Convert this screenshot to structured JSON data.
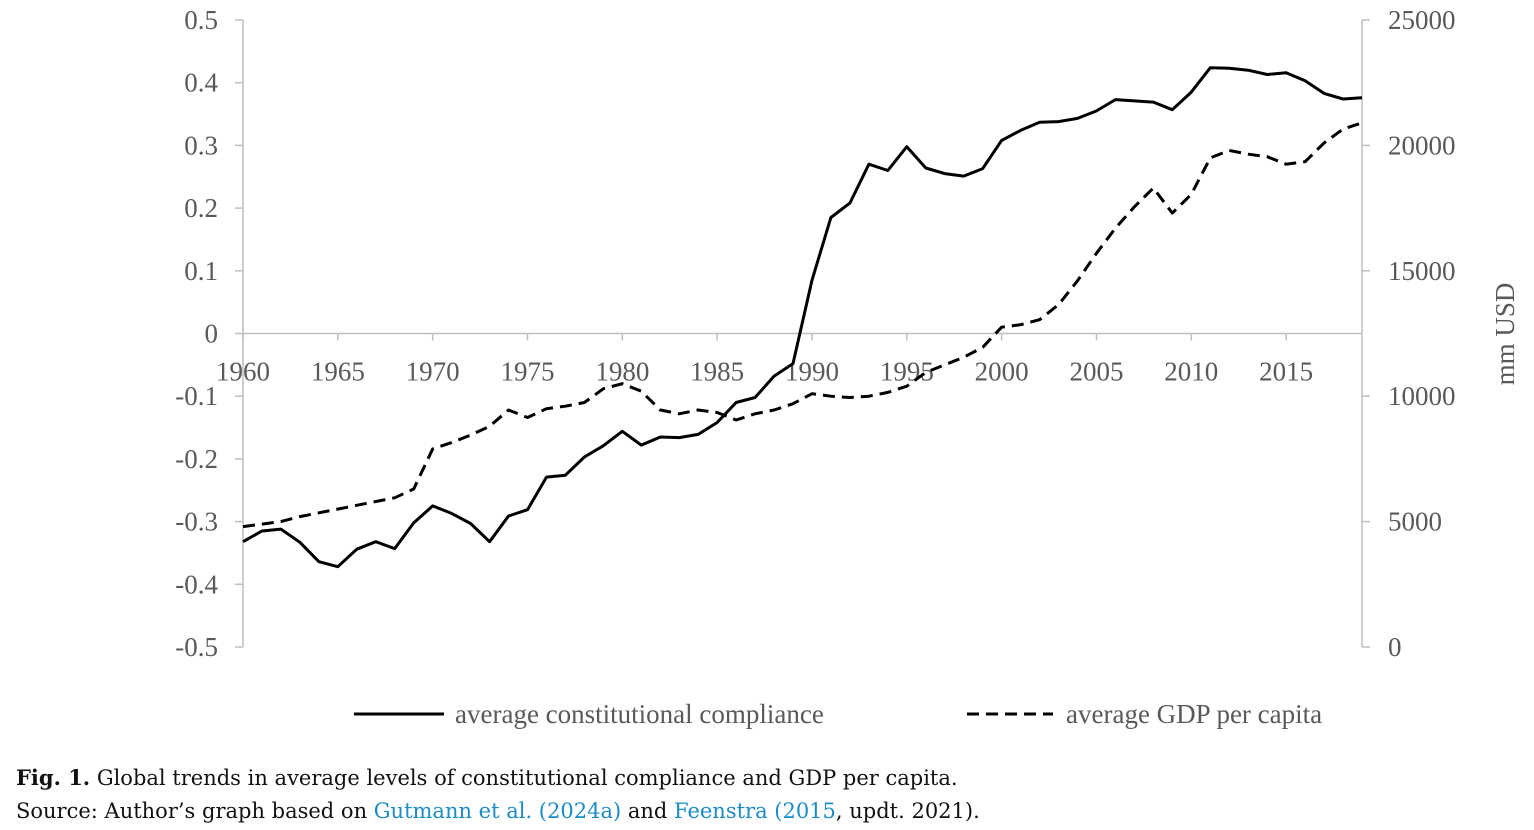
{
  "chart_data": {
    "type": "line",
    "x_axis": {
      "ticks": [
        "1960",
        "1965",
        "1970",
        "1975",
        "1980",
        "1985",
        "1990",
        "1995",
        "2000",
        "2005",
        "2010",
        "2015"
      ],
      "range": [
        1960,
        2019
      ]
    },
    "y_left": {
      "range": [
        -0.5,
        0.5
      ],
      "ticks": [
        "0.5",
        "0.4",
        "0.3",
        "0.2",
        "0.1",
        "0",
        "-0.1",
        "-0.2",
        "-0.3",
        "-0.4",
        "-0.5"
      ]
    },
    "y_right": {
      "label": "mm USD",
      "range": [
        0,
        25000
      ],
      "ticks": [
        "25000",
        "20000",
        "15000",
        "10000",
        "5000",
        "0"
      ]
    },
    "grid": false,
    "legend_position": "bottom",
    "series": [
      {
        "name": "average constitutional compliance",
        "axis": "left",
        "style": "solid",
        "x": [
          1960,
          1961,
          1962,
          1963,
          1964,
          1965,
          1966,
          1967,
          1968,
          1969,
          1970,
          1971,
          1972,
          1973,
          1974,
          1975,
          1976,
          1977,
          1978,
          1979,
          1980,
          1981,
          1982,
          1983,
          1984,
          1985,
          1986,
          1987,
          1988,
          1989,
          1990,
          1991,
          1992,
          1993,
          1994,
          1995,
          1996,
          1997,
          1998,
          1999,
          2000,
          2001,
          2002,
          2003,
          2004,
          2005,
          2006,
          2007,
          2008,
          2009,
          2010,
          2011,
          2012,
          2013,
          2014,
          2015,
          2016,
          2017,
          2018,
          2019
        ],
        "values": [
          -0.332,
          -0.315,
          -0.312,
          -0.333,
          -0.364,
          -0.372,
          -0.344,
          -0.332,
          -0.343,
          -0.302,
          -0.275,
          -0.287,
          -0.303,
          -0.332,
          -0.291,
          -0.281,
          -0.229,
          -0.226,
          -0.197,
          -0.179,
          -0.156,
          -0.178,
          -0.165,
          -0.166,
          -0.161,
          -0.142,
          -0.11,
          -0.102,
          -0.068,
          -0.048,
          0.085,
          0.185,
          0.208,
          0.27,
          0.26,
          0.298,
          0.264,
          0.255,
          0.251,
          0.263,
          0.308,
          0.324,
          0.337,
          0.338,
          0.343,
          0.355,
          0.373,
          0.371,
          0.369,
          0.357,
          0.385,
          0.424,
          0.423,
          0.42,
          0.413,
          0.416,
          0.403,
          0.383,
          0.374,
          0.376
        ]
      },
      {
        "name": "average GDP per capita",
        "axis": "right",
        "style": "dashed",
        "x": [
          1960,
          1961,
          1962,
          1963,
          1964,
          1965,
          1966,
          1967,
          1968,
          1969,
          1970,
          1971,
          1972,
          1973,
          1974,
          1975,
          1976,
          1977,
          1978,
          1979,
          1980,
          1981,
          1982,
          1983,
          1984,
          1985,
          1986,
          1987,
          1988,
          1989,
          1990,
          1991,
          1992,
          1993,
          1994,
          1995,
          1996,
          1997,
          1998,
          1999,
          2000,
          2001,
          2002,
          2003,
          2004,
          2005,
          2006,
          2007,
          2008,
          2009,
          2010,
          2011,
          2012,
          2013,
          2014,
          2015,
          2016,
          2017,
          2018,
          2019
        ],
        "values": [
          4800,
          4900,
          5000,
          5200,
          5350,
          5500,
          5650,
          5800,
          5950,
          6300,
          7900,
          8150,
          8450,
          8800,
          9450,
          9150,
          9500,
          9600,
          9750,
          10300,
          10500,
          10200,
          9450,
          9300,
          9450,
          9350,
          9050,
          9300,
          9450,
          9700,
          10100,
          10000,
          9950,
          10000,
          10150,
          10400,
          10950,
          11250,
          11550,
          11950,
          12750,
          12850,
          13050,
          13650,
          14600,
          15700,
          16700,
          17550,
          18300,
          17300,
          18050,
          19500,
          19800,
          19650,
          19550,
          19250,
          19350,
          20100,
          20650,
          20900
        ]
      }
    ]
  },
  "caption": {
    "label": "Fig. 1.",
    "line1": "Global trends in average levels of constitutional compliance and GDP per capita.",
    "line2_prefix": "Source: Author’s graph based on ",
    "link1": "Gutmann et al. (2024a)",
    "line2_mid": " and ",
    "link2": "Feenstra (2015",
    "line2_suffix": ", updt. 2021)."
  }
}
